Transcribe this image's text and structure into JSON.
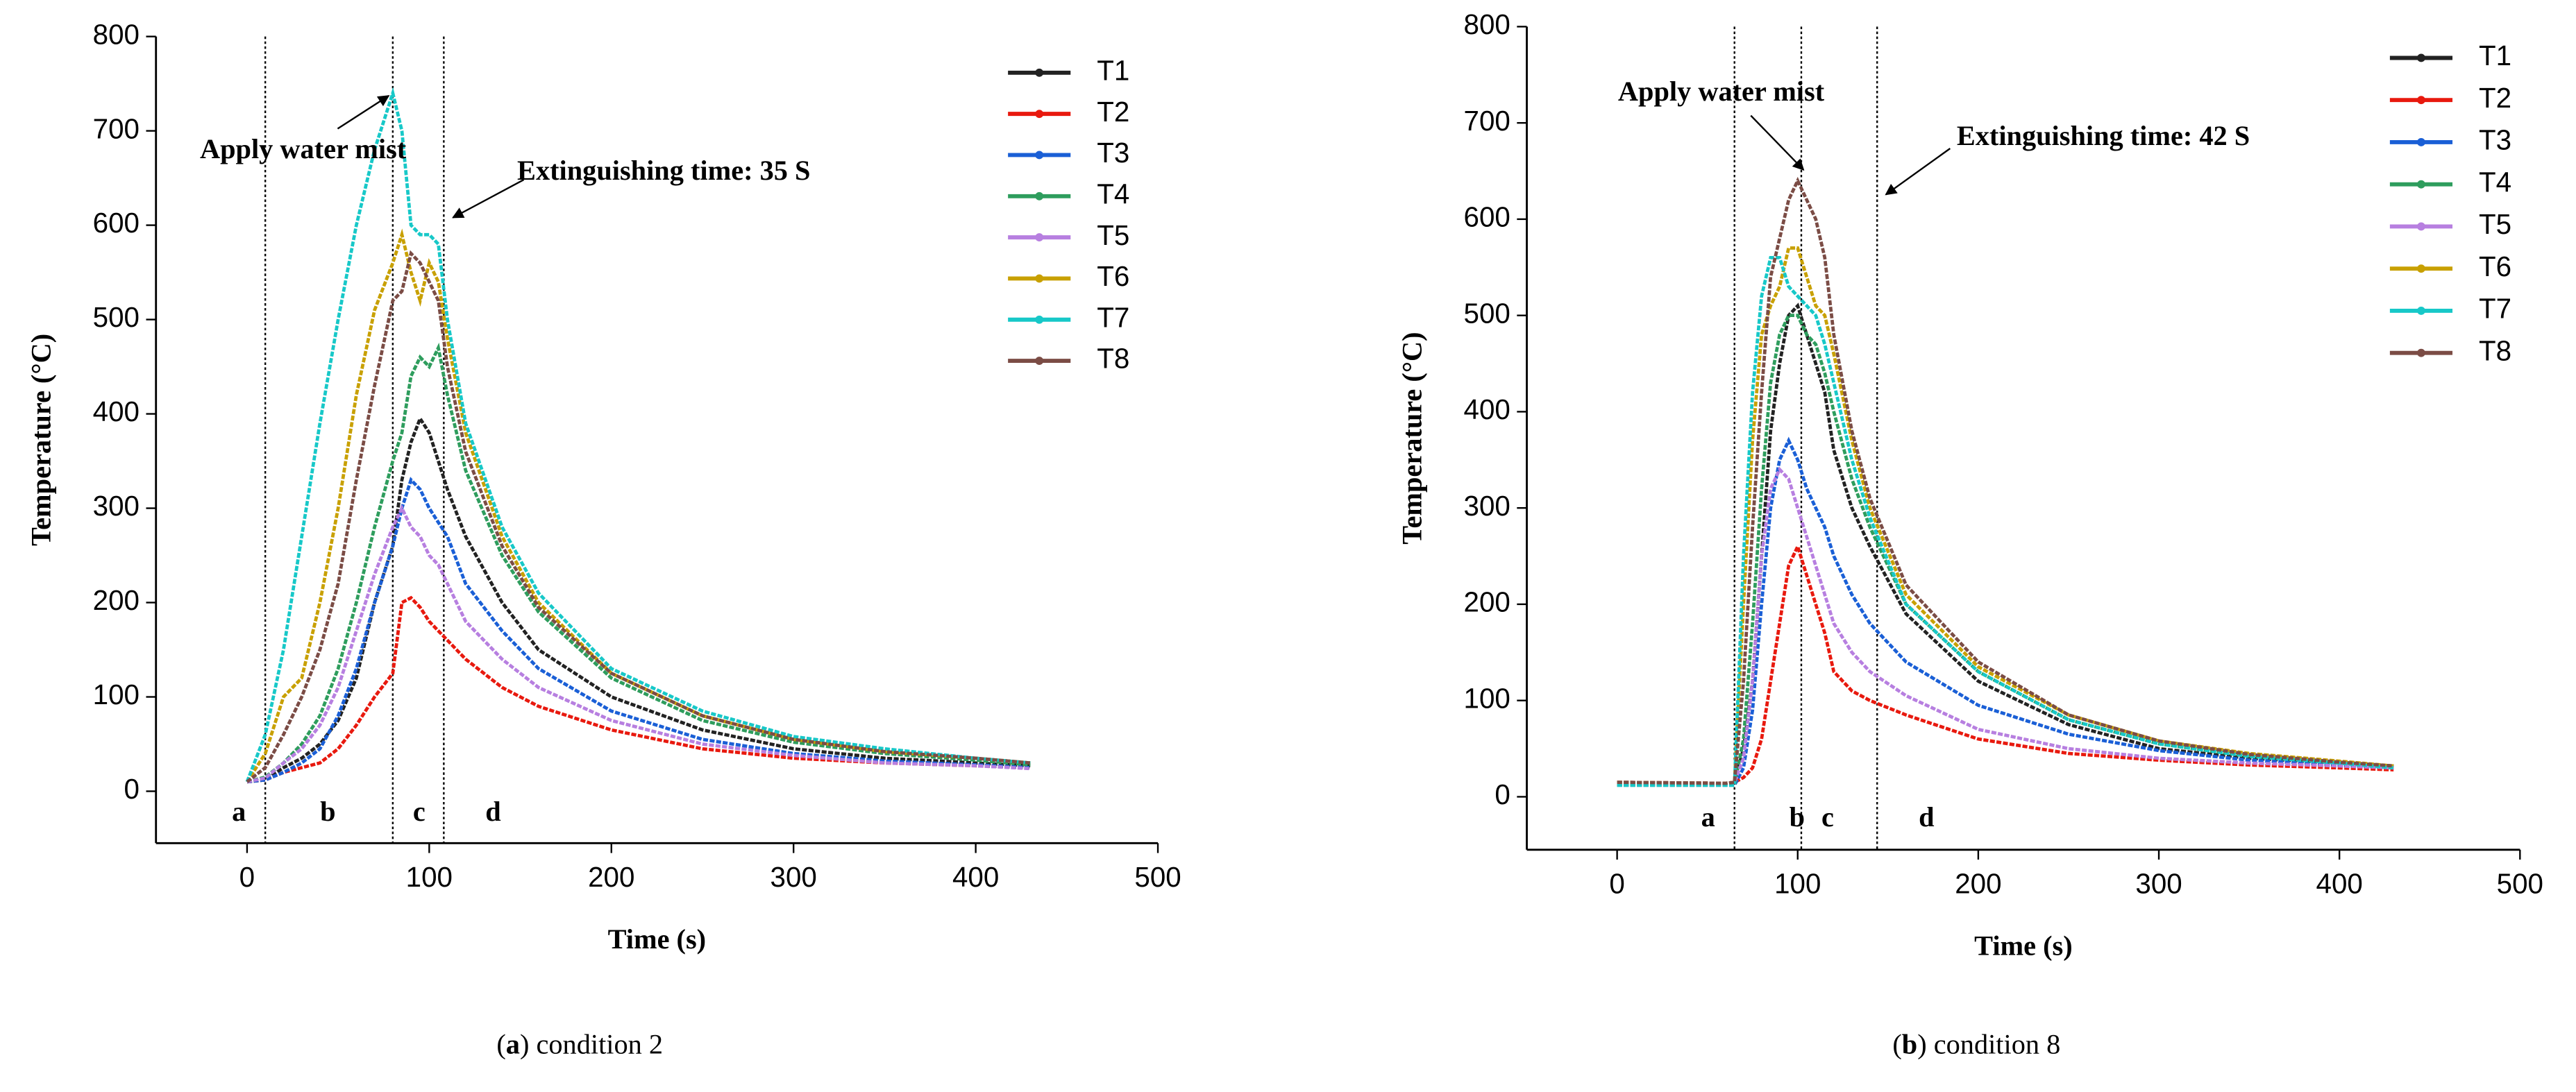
{
  "chart_data": [
    {
      "type": "line",
      "x_label": "Time (s)",
      "y_label": "Temperature (°C)",
      "xlim": [
        -50,
        500
      ],
      "ylim": [
        -55,
        800
      ],
      "xticks": [
        0,
        100,
        200,
        300,
        400,
        500
      ],
      "yticks": [
        0,
        100,
        200,
        300,
        400,
        500,
        600,
        700,
        800
      ],
      "legend": "upper right",
      "phase_boundaries": [
        10,
        80,
        108
      ],
      "phase_labels": [
        "a",
        "b",
        "c",
        "d"
      ],
      "annotations": [
        "Apply water mist",
        "Extinguishing time: 35 S"
      ],
      "caption_parts": [
        "(",
        "a",
        ") condition 2"
      ],
      "x": [
        0,
        10,
        20,
        30,
        40,
        50,
        60,
        70,
        80,
        85,
        90,
        95,
        100,
        105,
        110,
        120,
        140,
        160,
        200,
        250,
        300,
        350,
        400,
        430
      ],
      "series": [
        {
          "name": "T1",
          "color": "#222222",
          "values": [
            10,
            12,
            25,
            35,
            50,
            75,
            120,
            200,
            260,
            330,
            370,
            395,
            380,
            350,
            320,
            270,
            200,
            150,
            100,
            65,
            45,
            35,
            30,
            27
          ]
        },
        {
          "name": "T2",
          "color": "#e8190e",
          "values": [
            10,
            12,
            20,
            25,
            30,
            45,
            70,
            100,
            125,
            200,
            205,
            195,
            180,
            170,
            160,
            140,
            110,
            90,
            65,
            45,
            35,
            30,
            27,
            25
          ]
        },
        {
          "name": "T3",
          "color": "#1a5fd6",
          "values": [
            10,
            12,
            20,
            30,
            45,
            80,
            130,
            200,
            260,
            300,
            330,
            320,
            300,
            285,
            270,
            220,
            170,
            130,
            85,
            55,
            40,
            32,
            28,
            25
          ]
        },
        {
          "name": "T4",
          "color": "#2e9d5d",
          "values": [
            10,
            15,
            30,
            50,
            80,
            130,
            200,
            280,
            350,
            380,
            440,
            460,
            450,
            470,
            420,
            340,
            250,
            190,
            120,
            75,
            52,
            40,
            33,
            28
          ]
        },
        {
          "name": "T5",
          "color": "#b77fe0",
          "values": [
            10,
            14,
            30,
            45,
            70,
            110,
            170,
            230,
            280,
            300,
            280,
            270,
            250,
            240,
            220,
            180,
            140,
            110,
            75,
            50,
            38,
            30,
            27,
            24
          ]
        },
        {
          "name": "T6",
          "color": "#c8a000",
          "values": [
            10,
            40,
            100,
            120,
            200,
            300,
            420,
            510,
            560,
            590,
            550,
            520,
            560,
            540,
            480,
            380,
            270,
            200,
            125,
            80,
            55,
            42,
            35,
            30
          ]
        },
        {
          "name": "T7",
          "color": "#17c8c8",
          "values": [
            10,
            60,
            150,
            270,
            390,
            500,
            600,
            680,
            740,
            700,
            600,
            590,
            590,
            580,
            500,
            390,
            280,
            210,
            130,
            85,
            58,
            45,
            35,
            30
          ]
        },
        {
          "name": "T8",
          "color": "#7b4c45",
          "values": [
            10,
            25,
            60,
            100,
            150,
            220,
            330,
            430,
            520,
            530,
            570,
            560,
            540,
            520,
            450,
            360,
            260,
            195,
            125,
            80,
            55,
            42,
            35,
            30
          ]
        }
      ]
    },
    {
      "type": "line",
      "x_label": "Time (s)",
      "y_label": "Temperature (°C)",
      "xlim": [
        -50,
        500
      ],
      "ylim": [
        -55,
        800
      ],
      "xticks": [
        0,
        100,
        200,
        300,
        400,
        500
      ],
      "yticks": [
        0,
        100,
        200,
        300,
        400,
        500,
        600,
        700,
        800
      ],
      "legend": "upper right",
      "phase_boundaries": [
        65,
        102,
        144
      ],
      "phase_labels": [
        "a",
        "b",
        "c",
        "d"
      ],
      "annotations": [
        "Apply water mist",
        "Extinguishing time: 42 S"
      ],
      "caption_parts": [
        "(",
        "b",
        ") condition 8"
      ],
      "x": [
        0,
        60,
        65,
        70,
        75,
        80,
        85,
        90,
        95,
        100,
        105,
        110,
        115,
        120,
        130,
        140,
        160,
        200,
        250,
        300,
        350,
        400,
        430
      ],
      "series": [
        {
          "name": "T1",
          "color": "#222222",
          "values": [
            15,
            14,
            15,
            50,
            120,
            250,
            380,
            450,
            500,
            510,
            480,
            450,
            420,
            360,
            300,
            260,
            190,
            120,
            75,
            50,
            40,
            35,
            32
          ]
        },
        {
          "name": "T2",
          "color": "#e8190e",
          "values": [
            15,
            14,
            15,
            20,
            30,
            60,
            120,
            180,
            240,
            260,
            230,
            200,
            170,
            130,
            110,
            100,
            85,
            60,
            45,
            38,
            33,
            30,
            28
          ]
        },
        {
          "name": "T3",
          "color": "#1a5fd6",
          "values": [
            12,
            12,
            12,
            30,
            90,
            200,
            300,
            350,
            370,
            350,
            320,
            300,
            280,
            250,
            210,
            180,
            140,
            95,
            65,
            48,
            38,
            33,
            30
          ]
        },
        {
          "name": "T4",
          "color": "#2e9d5d",
          "values": [
            12,
            12,
            12,
            60,
            180,
            320,
            430,
            480,
            500,
            500,
            480,
            470,
            440,
            400,
            330,
            280,
            200,
            130,
            80,
            55,
            42,
            35,
            30
          ]
        },
        {
          "name": "T5",
          "color": "#b77fe0",
          "values": [
            15,
            14,
            15,
            40,
            120,
            250,
            320,
            340,
            330,
            300,
            270,
            240,
            210,
            180,
            150,
            130,
            105,
            70,
            50,
            40,
            35,
            32,
            30
          ]
        },
        {
          "name": "T6",
          "color": "#c8a000",
          "values": [
            15,
            14,
            15,
            200,
            370,
            480,
            510,
            530,
            570,
            570,
            540,
            510,
            500,
            460,
            370,
            300,
            210,
            135,
            85,
            58,
            45,
            37,
            32
          ]
        },
        {
          "name": "T7",
          "color": "#17c8c8",
          "values": [
            12,
            12,
            12,
            250,
            420,
            520,
            560,
            560,
            530,
            520,
            510,
            500,
            470,
            430,
            350,
            290,
            200,
            130,
            80,
            55,
            42,
            35,
            30
          ]
        },
        {
          "name": "T8",
          "color": "#7b4c45",
          "values": [
            15,
            14,
            15,
            120,
            280,
            420,
            540,
            580,
            620,
            640,
            620,
            600,
            560,
            480,
            380,
            310,
            220,
            140,
            85,
            58,
            44,
            36,
            32
          ]
        }
      ]
    }
  ]
}
